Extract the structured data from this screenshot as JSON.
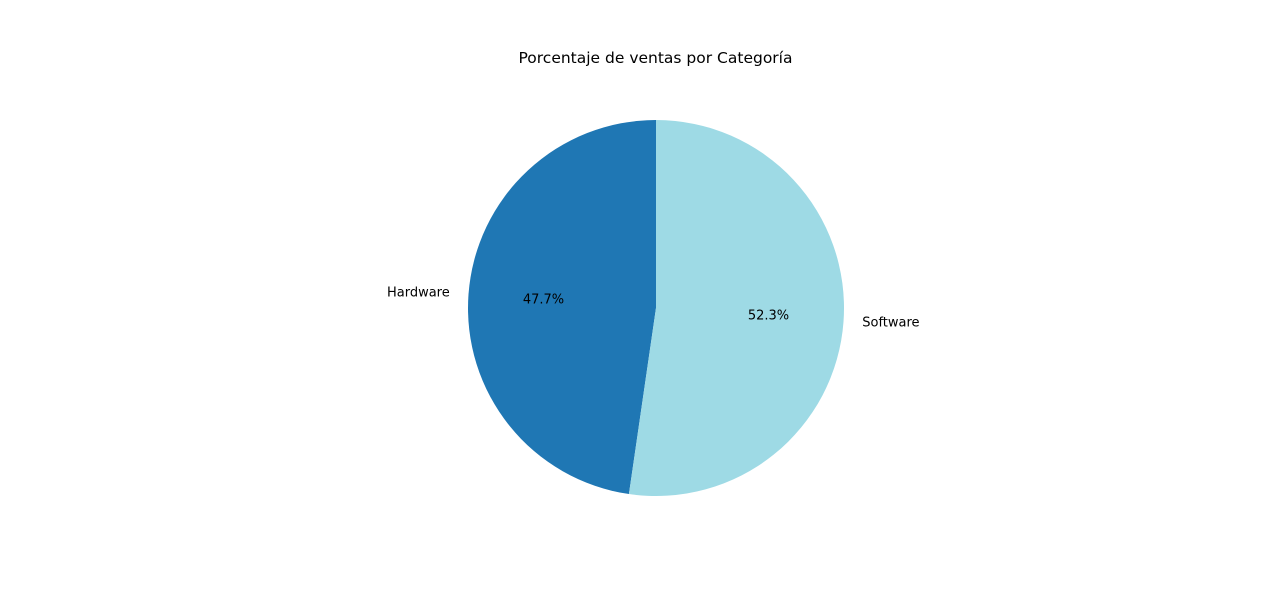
{
  "chart_data": {
    "type": "pie",
    "title": "Porcentaje de ventas por Categoría",
    "categories": [
      "Hardware",
      "Software"
    ],
    "values": [
      47.7,
      52.3
    ],
    "value_labels": [
      "47.7%",
      "52.3%"
    ],
    "colors": [
      "#1f77b4",
      "#9edae5"
    ],
    "start_angle_deg": 90,
    "direction": "counterclockwise",
    "legend": "none"
  }
}
